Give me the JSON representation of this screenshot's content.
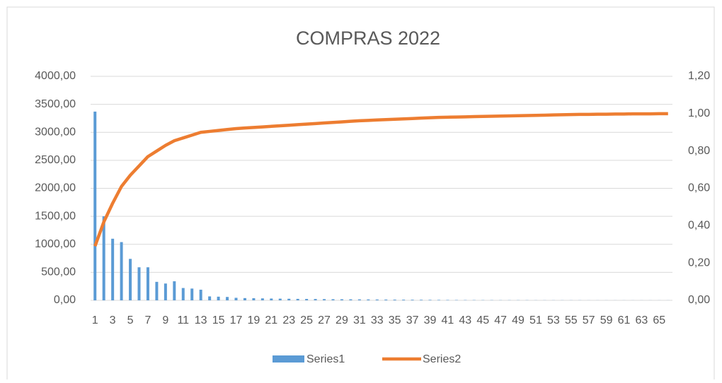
{
  "chart_data": {
    "type": "bar",
    "title": "COMPRAS 2022",
    "categories": [
      "1",
      null,
      "3",
      null,
      "5",
      null,
      "7",
      null,
      "9",
      null,
      "11",
      null,
      "13",
      null,
      "15",
      null,
      "17",
      null,
      "19",
      null,
      "21",
      null,
      "23",
      null,
      "25",
      null,
      "27",
      null,
      "29",
      null,
      "31",
      null,
      "33",
      null,
      "35",
      null,
      "37",
      null,
      "39",
      null,
      "41",
      null,
      "43",
      null,
      "45",
      null,
      "47",
      null,
      "49",
      null,
      "51",
      null,
      "53",
      null,
      "55",
      null,
      "57",
      null,
      "59",
      null,
      "61",
      null,
      "63",
      null,
      "65",
      null
    ],
    "series": [
      {
        "name": "Series1",
        "type": "bar",
        "color": "#5b9bd5",
        "values": [
          3370,
          1500,
          1100,
          1040,
          740,
          590,
          590,
          330,
          300,
          340,
          220,
          210,
          190,
          70,
          65,
          60,
          45,
          40,
          38,
          35,
          32,
          30,
          28,
          26,
          25,
          24,
          22,
          20,
          19,
          18,
          17,
          16,
          15,
          14,
          13,
          12,
          11,
          10,
          9,
          8,
          7,
          6,
          5,
          5,
          4,
          4,
          3,
          3,
          3,
          3,
          2,
          2,
          2,
          2,
          2,
          2,
          1,
          1,
          1,
          1,
          1,
          1,
          1,
          1,
          1,
          1
        ]
      },
      {
        "name": "Series2",
        "type": "line",
        "axis": "y2",
        "color": "#ed7d31",
        "values": [
          0.29,
          0.42,
          0.52,
          0.61,
          0.67,
          0.72,
          0.77,
          0.8,
          0.83,
          0.855,
          0.87,
          0.885,
          0.9,
          0.905,
          0.91,
          0.915,
          0.92,
          0.923,
          0.926,
          0.929,
          0.932,
          0.935,
          0.938,
          0.941,
          0.944,
          0.947,
          0.95,
          0.953,
          0.956,
          0.959,
          0.962,
          0.964,
          0.966,
          0.968,
          0.97,
          0.972,
          0.974,
          0.976,
          0.978,
          0.98,
          0.981,
          0.982,
          0.983,
          0.984,
          0.985,
          0.986,
          0.987,
          0.988,
          0.989,
          0.99,
          0.991,
          0.992,
          0.993,
          0.994,
          0.995,
          0.996,
          0.996,
          0.997,
          0.997,
          0.998,
          0.998,
          0.999,
          0.999,
          0.999,
          1.0,
          1.0
        ]
      }
    ],
    "ylim": [
      0,
      4000
    ],
    "yticks": [
      {
        "value": 0,
        "label": "0,00"
      },
      {
        "value": 500,
        "label": "500,00"
      },
      {
        "value": 1000,
        "label": "1000,00"
      },
      {
        "value": 1500,
        "label": "1500,00"
      },
      {
        "value": 2000,
        "label": "2000,00"
      },
      {
        "value": 2500,
        "label": "2500,00"
      },
      {
        "value": 3000,
        "label": "3000,00"
      },
      {
        "value": 3500,
        "label": "3500,00"
      },
      {
        "value": 4000,
        "label": "4000,00"
      }
    ],
    "y2lim": [
      0,
      1.2
    ],
    "y2ticks": [
      {
        "value": 0,
        "label": "0,00"
      },
      {
        "value": 0.2,
        "label": "0,20"
      },
      {
        "value": 0.4,
        "label": "0,40"
      },
      {
        "value": 0.6,
        "label": "0,60"
      },
      {
        "value": 0.8,
        "label": "0,80"
      },
      {
        "value": 1.0,
        "label": "1,00"
      },
      {
        "value": 1.2,
        "label": "1,20"
      }
    ],
    "grid": true,
    "legend": "bottom"
  }
}
